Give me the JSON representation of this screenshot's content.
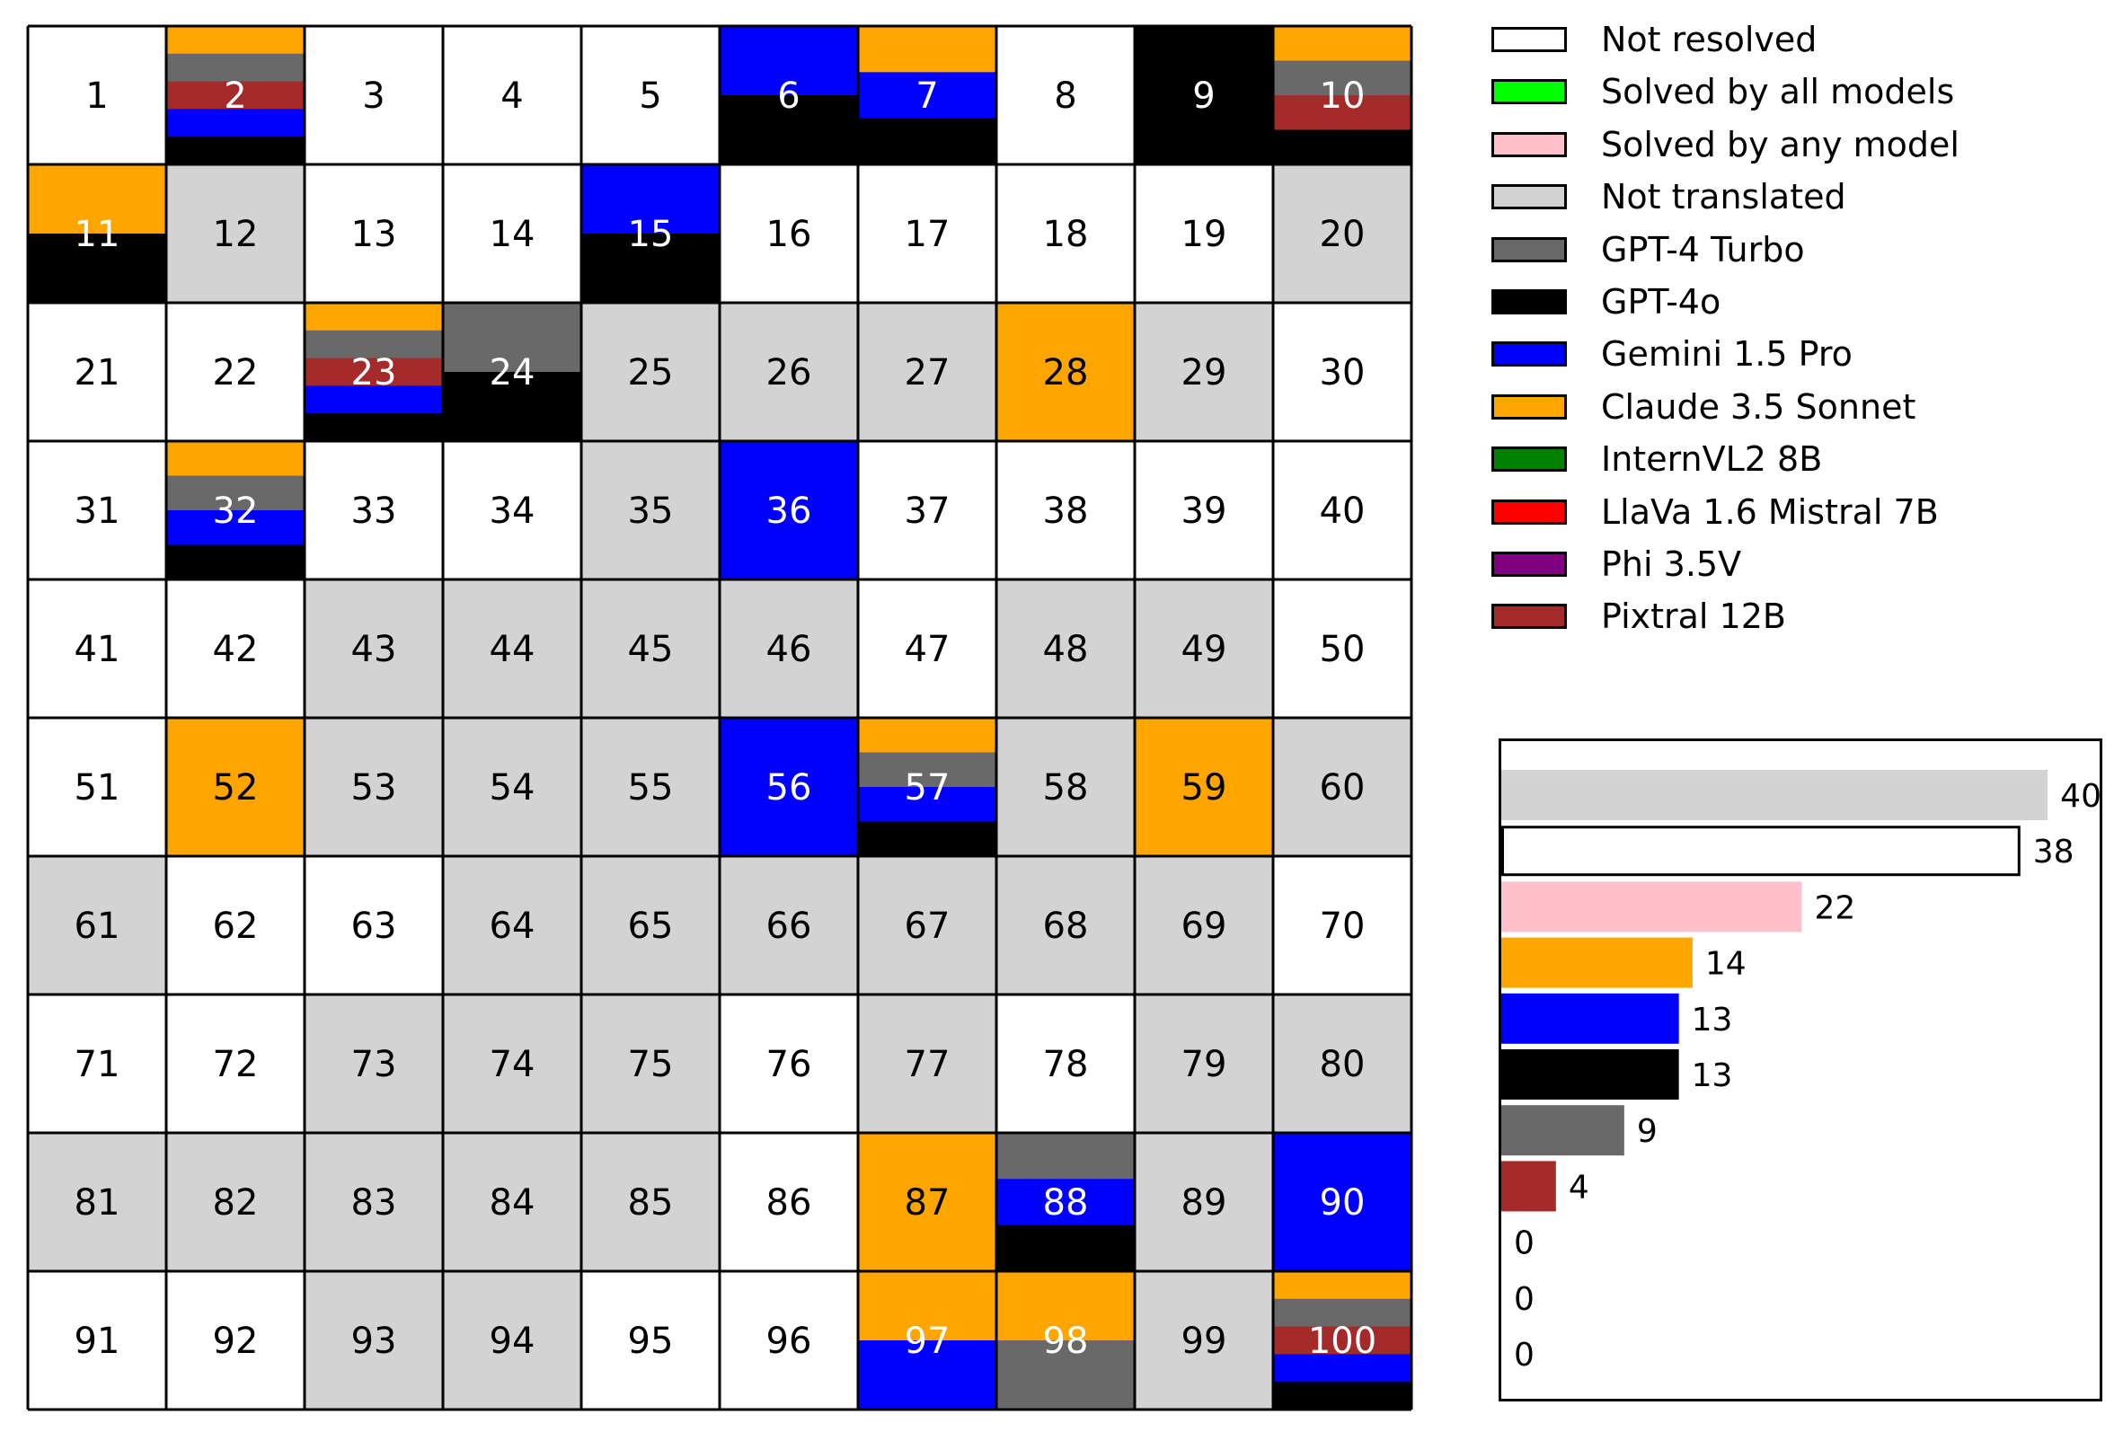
{
  "colors": {
    "not_resolved": "#ffffff",
    "not_translated": "#d3d3d3",
    "gpt4_turbo": "#696969",
    "gpt4o": "#000000",
    "gemini": "#0000ff",
    "claude": "#ffa500",
    "pixtral": "#a52a2a"
  },
  "legend": [
    {
      "label": "Not resolved",
      "color": "#ffffff"
    },
    {
      "label": "Solved by all models",
      "color": "#00ff00"
    },
    {
      "label": "Solved by any model",
      "color": "#ffc0cb"
    },
    {
      "label": "Not translated",
      "color": "#d3d3d3"
    },
    {
      "label": "GPT-4 Turbo",
      "color": "#696969"
    },
    {
      "label": "GPT-4o",
      "color": "#000000"
    },
    {
      "label": "Gemini 1.5 Pro",
      "color": "#0000ff"
    },
    {
      "label": "Claude 3.5 Sonnet",
      "color": "#ffa500"
    },
    {
      "label": "InternVL2 8B",
      "color": "#008000"
    },
    {
      "label": "LlaVa 1.6 Mistral 7B",
      "color": "#ff0000"
    },
    {
      "label": "Phi 3.5V",
      "color": "#800080"
    },
    {
      "label": "Pixtral 12B",
      "color": "#a52a2a"
    }
  ],
  "chart_data": [
    {
      "type": "heatmap",
      "rows": 10,
      "cols": 10,
      "cell_values": [
        1,
        2,
        3,
        4,
        5,
        6,
        7,
        8,
        9,
        10,
        11,
        12,
        13,
        14,
        15,
        16,
        17,
        18,
        19,
        20,
        21,
        22,
        23,
        24,
        25,
        26,
        27,
        28,
        29,
        30,
        31,
        32,
        33,
        34,
        35,
        36,
        37,
        38,
        39,
        40,
        41,
        42,
        43,
        44,
        45,
        46,
        47,
        48,
        49,
        50,
        51,
        52,
        53,
        54,
        55,
        56,
        57,
        58,
        59,
        60,
        61,
        62,
        63,
        64,
        65,
        66,
        67,
        68,
        69,
        70,
        71,
        72,
        73,
        74,
        75,
        76,
        77,
        78,
        79,
        80,
        81,
        82,
        83,
        84,
        85,
        86,
        87,
        88,
        89,
        90,
        91,
        92,
        93,
        94,
        95,
        96,
        97,
        98,
        99,
        100
      ],
      "not_translated": [
        12,
        20,
        25,
        26,
        27,
        29,
        35,
        43,
        44,
        45,
        46,
        48,
        49,
        53,
        54,
        55,
        58,
        60,
        61,
        64,
        65,
        66,
        67,
        68,
        69,
        73,
        74,
        75,
        77,
        79,
        80,
        81,
        82,
        83,
        84,
        85,
        89,
        93,
        94,
        99
      ],
      "solved": {
        "2": [
          "claude",
          "gpt4_turbo",
          "pixtral",
          "gemini",
          "gpt4o"
        ],
        "6": [
          "gemini",
          "gpt4o"
        ],
        "7": [
          "claude",
          "gemini",
          "gpt4o"
        ],
        "9": [
          "gpt4o"
        ],
        "10": [
          "claude",
          "gpt4_turbo",
          "pixtral",
          "gpt4o"
        ],
        "11": [
          "claude",
          "gpt4o"
        ],
        "15": [
          "gemini",
          "gpt4o"
        ],
        "23": [
          "claude",
          "gpt4_turbo",
          "pixtral",
          "gemini",
          "gpt4o"
        ],
        "24": [
          "gpt4_turbo",
          "gpt4o"
        ],
        "28": [
          "claude"
        ],
        "32": [
          "claude",
          "gpt4_turbo",
          "gemini",
          "gpt4o"
        ],
        "36": [
          "gemini"
        ],
        "52": [
          "claude"
        ],
        "56": [
          "gemini"
        ],
        "57": [
          "claude",
          "gpt4_turbo",
          "gemini",
          "gpt4o"
        ],
        "59": [
          "claude"
        ],
        "87": [
          "claude"
        ],
        "88": [
          "gpt4_turbo",
          "gemini",
          "gpt4o"
        ],
        "90": [
          "gemini"
        ],
        "97": [
          "claude",
          "gemini"
        ],
        "98": [
          "claude",
          "gpt4_turbo"
        ],
        "100": [
          "claude",
          "gpt4_turbo",
          "pixtral",
          "gemini",
          "gpt4o"
        ]
      }
    },
    {
      "type": "bar",
      "orientation": "horizontal",
      "categories": [
        "Not translated",
        "Not resolved",
        "Solved by any model",
        "Claude 3.5 Sonnet",
        "Gemini 1.5 Pro",
        "GPT-4o",
        "GPT-4 Turbo",
        "Pixtral 12B",
        "Solved by all models",
        "InternVL2 8B",
        "LlaVa 1.6 Mistral 7B"
      ],
      "values": [
        40,
        38,
        22,
        14,
        13,
        13,
        9,
        4,
        0,
        0,
        0
      ],
      "colors": [
        "#d3d3d3",
        "#ffffff",
        "#ffc0cb",
        "#ffa500",
        "#0000ff",
        "#000000",
        "#696969",
        "#a52a2a",
        "#00ff00",
        "#008000",
        "#ff0000"
      ],
      "value_labels": [
        "40",
        "38",
        "22",
        "14",
        "13",
        "13",
        "9",
        "4",
        "0",
        "0",
        "0"
      ],
      "xlim": [
        0,
        44
      ]
    }
  ]
}
